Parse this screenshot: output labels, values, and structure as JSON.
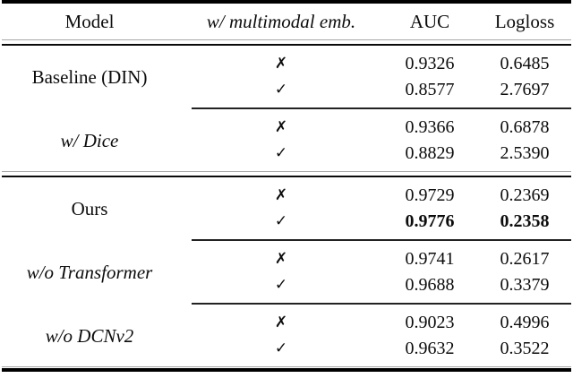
{
  "table": {
    "columns": [
      "Model",
      "w/ multimodal emb.",
      "AUC",
      "Logloss"
    ],
    "marks": {
      "no": "✗",
      "yes": "✓"
    },
    "groups": [
      {
        "model": "Baseline (DIN)",
        "italic": false,
        "rule_after": "cmid",
        "rows": [
          {
            "mark": "no",
            "auc": "0.9326",
            "logloss": "0.6485",
            "bold": false
          },
          {
            "mark": "yes",
            "auc": "0.8577",
            "logloss": "2.7697",
            "bold": false
          }
        ]
      },
      {
        "model": "w/ Dice",
        "italic": true,
        "rule_after": "double",
        "rows": [
          {
            "mark": "no",
            "auc": "0.9366",
            "logloss": "0.6878",
            "bold": false
          },
          {
            "mark": "yes",
            "auc": "0.8829",
            "logloss": "2.5390",
            "bold": false
          }
        ]
      },
      {
        "model": "Ours",
        "italic": false,
        "rule_after": "cmid",
        "rows": [
          {
            "mark": "no",
            "auc": "0.9729",
            "logloss": "0.2369",
            "bold": false
          },
          {
            "mark": "yes",
            "auc": "0.9776",
            "logloss": "0.2358",
            "bold": true
          }
        ]
      },
      {
        "model": "w/o Transformer",
        "italic": true,
        "rule_after": "cmid",
        "rows": [
          {
            "mark": "no",
            "auc": "0.9741",
            "logloss": "0.2617",
            "bold": false
          },
          {
            "mark": "yes",
            "auc": "0.9688",
            "logloss": "0.3379",
            "bold": false
          }
        ]
      },
      {
        "model": "w/o DCNv2",
        "italic": true,
        "rule_after": "none",
        "rows": [
          {
            "mark": "no",
            "auc": "0.9023",
            "logloss": "0.4996",
            "bold": false
          },
          {
            "mark": "yes",
            "auc": "0.9632",
            "logloss": "0.3522",
            "bold": false
          }
        ]
      }
    ]
  }
}
